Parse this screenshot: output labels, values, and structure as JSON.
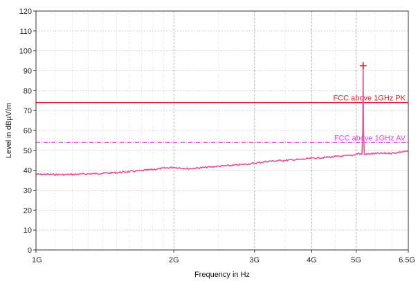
{
  "chart_data": {
    "type": "line",
    "xlabel": "Frequency in Hz",
    "ylabel": "Level in dBµV/m",
    "x_scale": "log",
    "xlim_hz": [
      1000000000,
      6500000000
    ],
    "ylim": [
      0,
      120
    ],
    "y_ticks": [
      0,
      10,
      20,
      30,
      40,
      50,
      60,
      70,
      80,
      90,
      100,
      110,
      120
    ],
    "x_ticks": [
      {
        "value_hz": 1000000000,
        "label": "1G"
      },
      {
        "value_hz": 2000000000,
        "label": "2G"
      },
      {
        "value_hz": 3000000000,
        "label": "3G"
      },
      {
        "value_hz": 4000000000,
        "label": "4G"
      },
      {
        "value_hz": 5000000000,
        "label": "5G"
      },
      {
        "value_hz": 6500000000,
        "label": "6.5G"
      }
    ],
    "grid": true,
    "limit_lines": [
      {
        "name": "FCC above 1GHz PK",
        "value": 74,
        "color": "#e0202a",
        "style": "solid"
      },
      {
        "name": "FCC above 1GHz AV",
        "value": 54,
        "color": "#e040e0",
        "style": "dashdot"
      }
    ],
    "series": [
      {
        "color": "#e0559a",
        "x_hz": [
          1000000000,
          1150000000,
          1300000000,
          1500000000,
          1700000000,
          1900000000,
          2000000000,
          2150000000,
          2300000000,
          2500000000,
          2700000000,
          3000000000,
          3200000000,
          3500000000,
          3800000000,
          4000000000,
          4300000000,
          4600000000,
          4900000000,
          5050000000,
          5150000000,
          5170000000,
          5180000000,
          5190000000,
          5210000000,
          5400000000,
          5700000000,
          6000000000,
          6300000000,
          6500000000
        ],
        "y": [
          38,
          37.8,
          38.2,
          38.8,
          39.8,
          41,
          41.5,
          40.8,
          41.3,
          42,
          42.5,
          43.5,
          44.5,
          45,
          45.5,
          46,
          46.5,
          47,
          47.5,
          48.5,
          48,
          60,
          93,
          60,
          48,
          48.3,
          48.5,
          48.6,
          49.3,
          49.5
        ]
      }
    ],
    "markers": [
      {
        "x_hz": 5180000000,
        "y": 92.5,
        "symbol": "+",
        "color": "#e0202a"
      }
    ]
  }
}
